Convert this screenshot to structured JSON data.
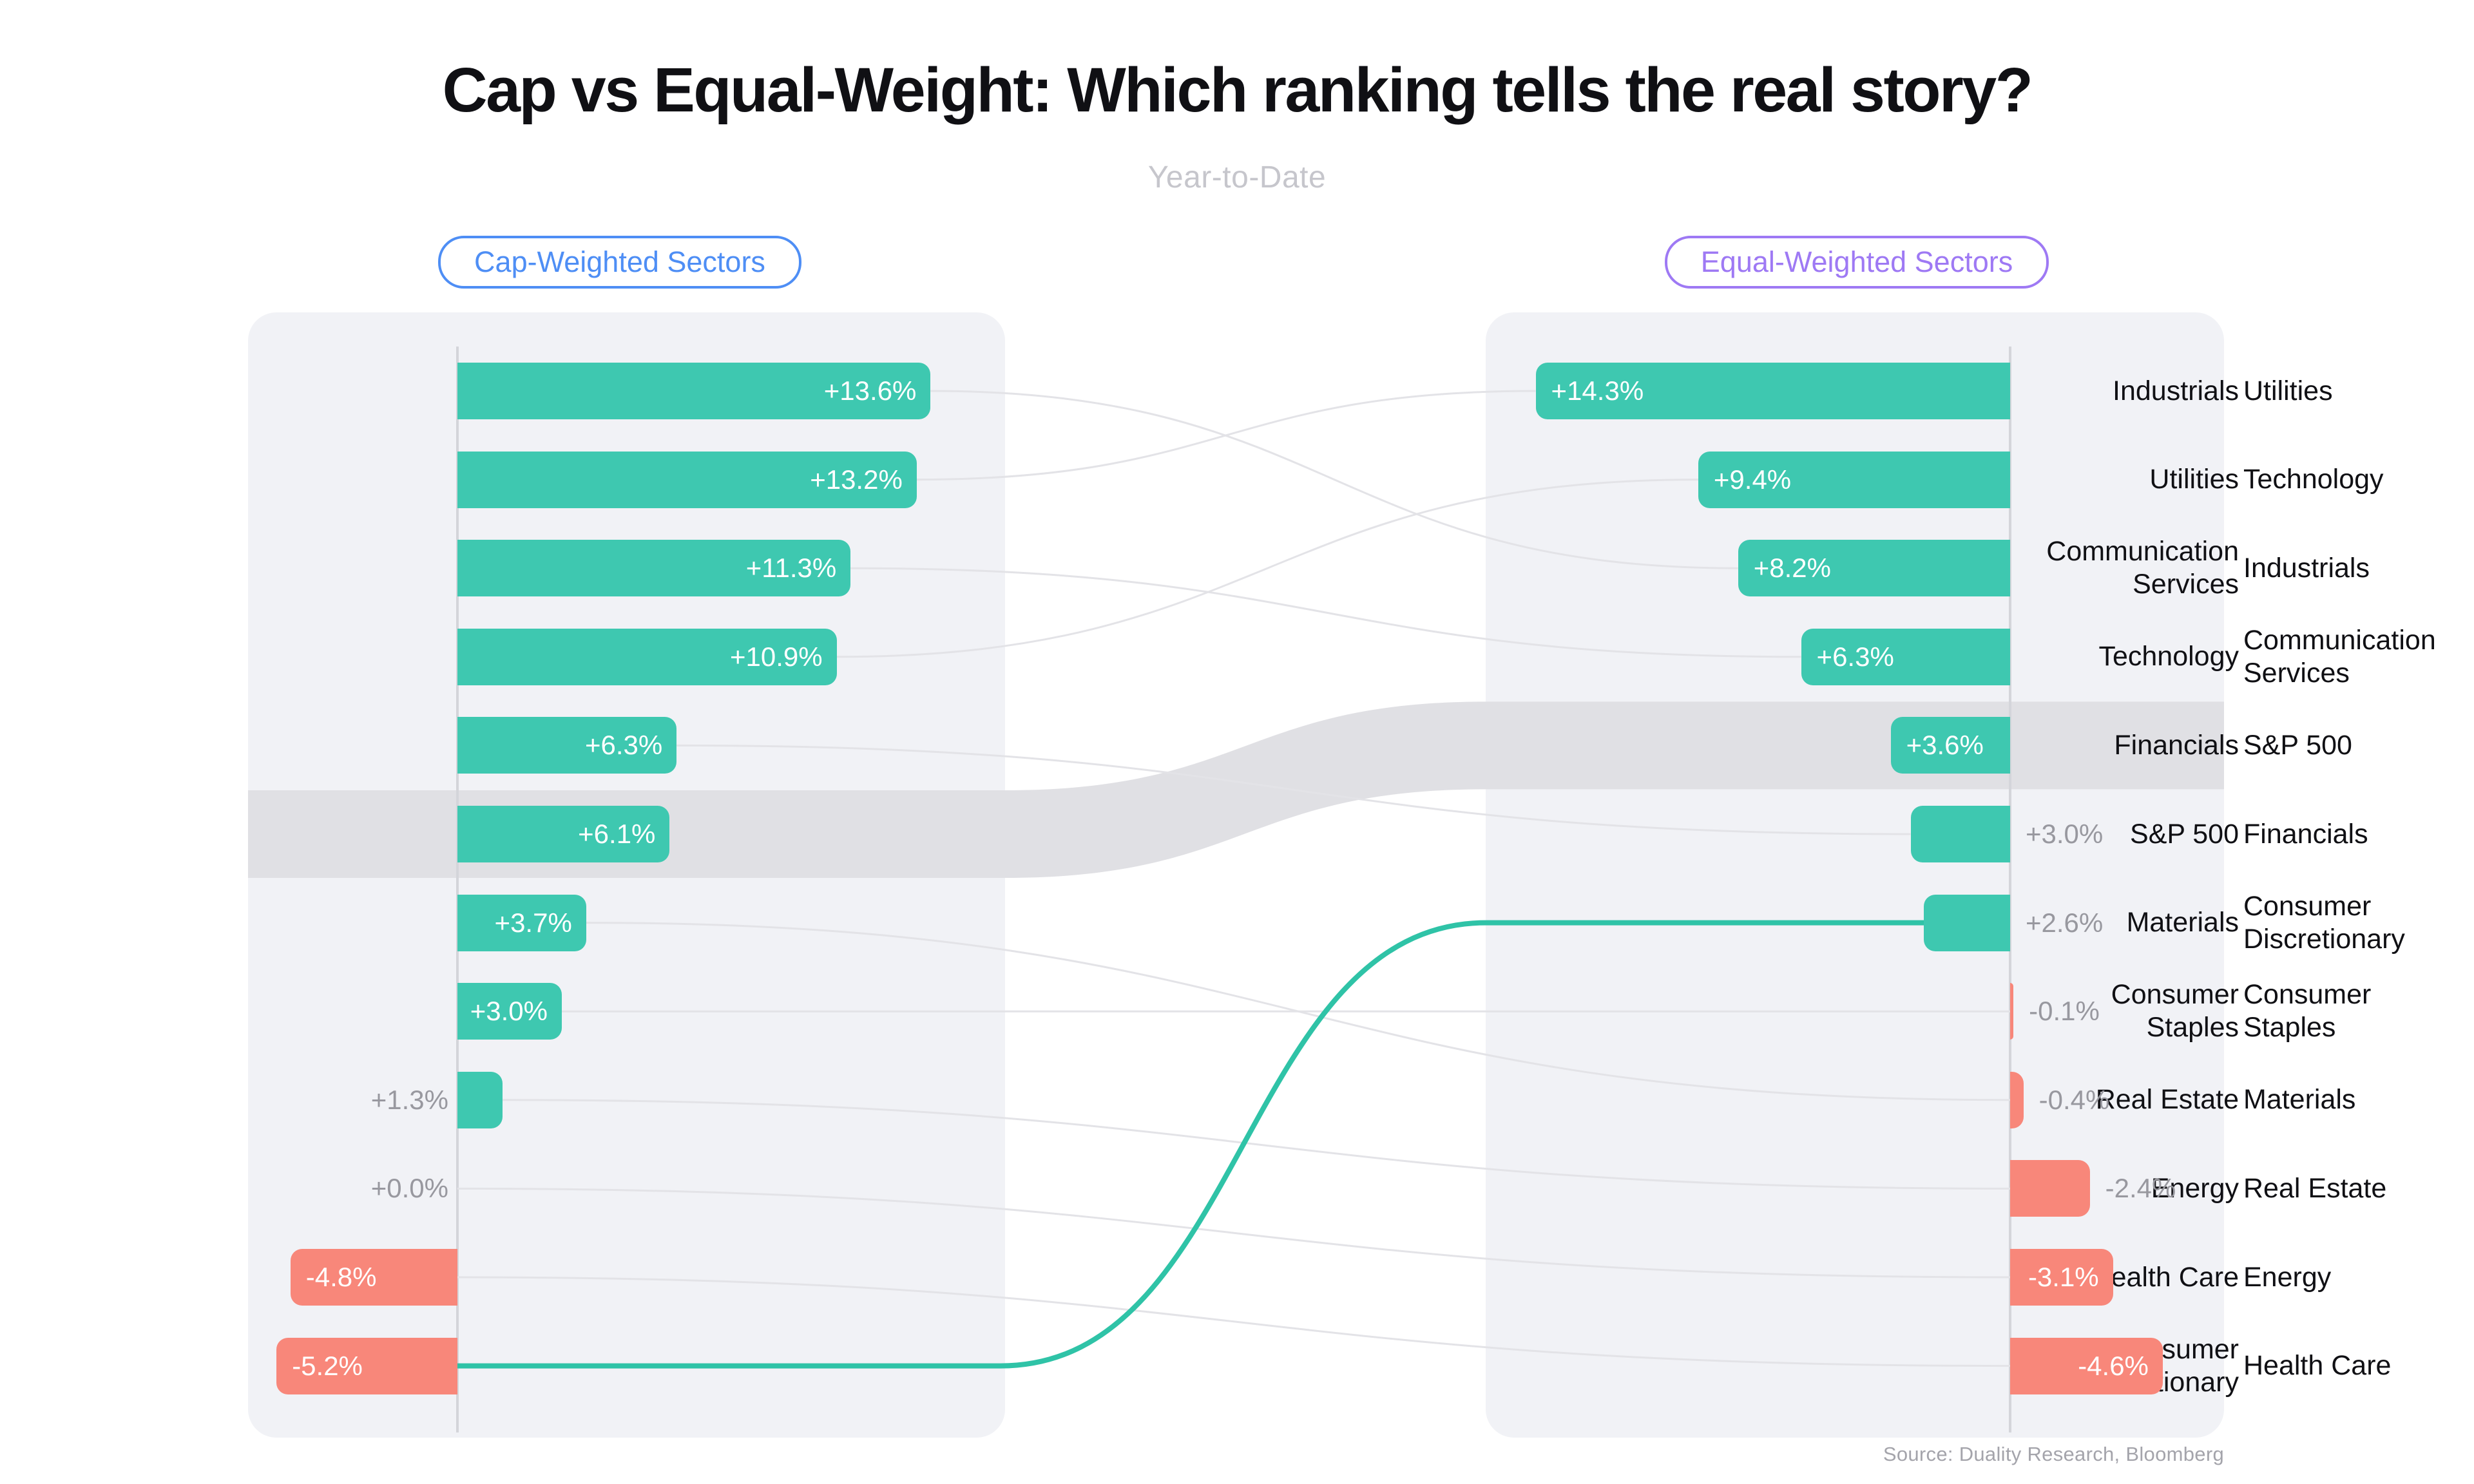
{
  "title": "Cap vs Equal-Weight: Which ranking tells the real story?",
  "subtitle": "Year-to-Date",
  "source": "Source: Duality Research, Bloomberg",
  "badges": {
    "left": "Cap-Weighted Sectors",
    "right": "Equal-Weighted Sectors"
  },
  "colors": {
    "positive": "#3EC8B0",
    "negative": "#F8877A",
    "highlight_line": "#2FC3A7",
    "benchmark_band": "#E0E0E4",
    "cap_badge": "#4E8EF5",
    "equal_badge": "#9E79F4",
    "panel": "#F1F2F6",
    "axis": "#D4D5DA",
    "connector": "#E3E3E7",
    "value_outside": "#98989F",
    "label_strong": "#101014",
    "subtitle_gray": "#C6C6CC",
    "source_gray": "#A4A4AB"
  },
  "chart_data": {
    "type": "bar",
    "layout": "paired-ranked-horizontal-bars-with-rank-connectors",
    "period": "Year-to-Date",
    "benchmark": "S&P 500",
    "highlight": "Consumer Discretionary",
    "value_unit": "percent YTD return",
    "left_series": {
      "name": "Cap-Weighted Sectors",
      "items": [
        {
          "sector": "Industrials",
          "value": 13.6,
          "display": "+13.6%",
          "inside": true
        },
        {
          "sector": "Utilities",
          "value": 13.2,
          "display": "+13.2%",
          "inside": true
        },
        {
          "sector": "Communication Services",
          "value": 11.3,
          "display": "+11.3%",
          "inside": true
        },
        {
          "sector": "Technology",
          "value": 10.9,
          "display": "+10.9%",
          "inside": true
        },
        {
          "sector": "Financials",
          "value": 6.3,
          "display": "+6.3%",
          "inside": true
        },
        {
          "sector": "S&P 500",
          "value": 6.1,
          "display": "+6.1%",
          "inside": true
        },
        {
          "sector": "Materials",
          "value": 3.7,
          "display": "+3.7%",
          "inside": true
        },
        {
          "sector": "Consumer Staples",
          "value": 3.0,
          "display": "+3.0%",
          "inside": true
        },
        {
          "sector": "Real Estate",
          "value": 1.3,
          "display": "+1.3%",
          "inside": false
        },
        {
          "sector": "Energy",
          "value": 0.0,
          "display": "+0.0%",
          "inside": false
        },
        {
          "sector": "Health Care",
          "value": -4.8,
          "display": "-4.8%",
          "inside": true
        },
        {
          "sector": "Consumer Discretionary",
          "value": -5.2,
          "display": "-5.2%",
          "inside": true
        }
      ]
    },
    "right_series": {
      "name": "Equal-Weighted Sectors",
      "items": [
        {
          "sector": "Utilities",
          "value": 14.3,
          "display": "+14.3%",
          "inside": true
        },
        {
          "sector": "Technology",
          "value": 9.4,
          "display": "+9.4%",
          "inside": true
        },
        {
          "sector": "Industrials",
          "value": 8.2,
          "display": "+8.2%",
          "inside": true
        },
        {
          "sector": "Communication Services",
          "value": 6.3,
          "display": "+6.3%",
          "inside": true
        },
        {
          "sector": "S&P 500",
          "value": 3.6,
          "display": "+3.6%",
          "inside": true
        },
        {
          "sector": "Financials",
          "value": 3.0,
          "display": "+3.0%",
          "inside": false
        },
        {
          "sector": "Consumer Discretionary",
          "value": 2.6,
          "display": "+2.6%",
          "inside": false
        },
        {
          "sector": "Consumer Staples",
          "value": -0.1,
          "display": "-0.1%",
          "inside": false
        },
        {
          "sector": "Materials",
          "value": -0.4,
          "display": "-0.4%",
          "inside": false
        },
        {
          "sector": "Real Estate",
          "value": -2.4,
          "display": "-2.4%",
          "inside": false
        },
        {
          "sector": "Energy",
          "value": -3.1,
          "display": "-3.1%",
          "inside": true
        },
        {
          "sector": "Health Care",
          "value": -4.6,
          "display": "-4.6%",
          "inside": true
        }
      ]
    }
  }
}
